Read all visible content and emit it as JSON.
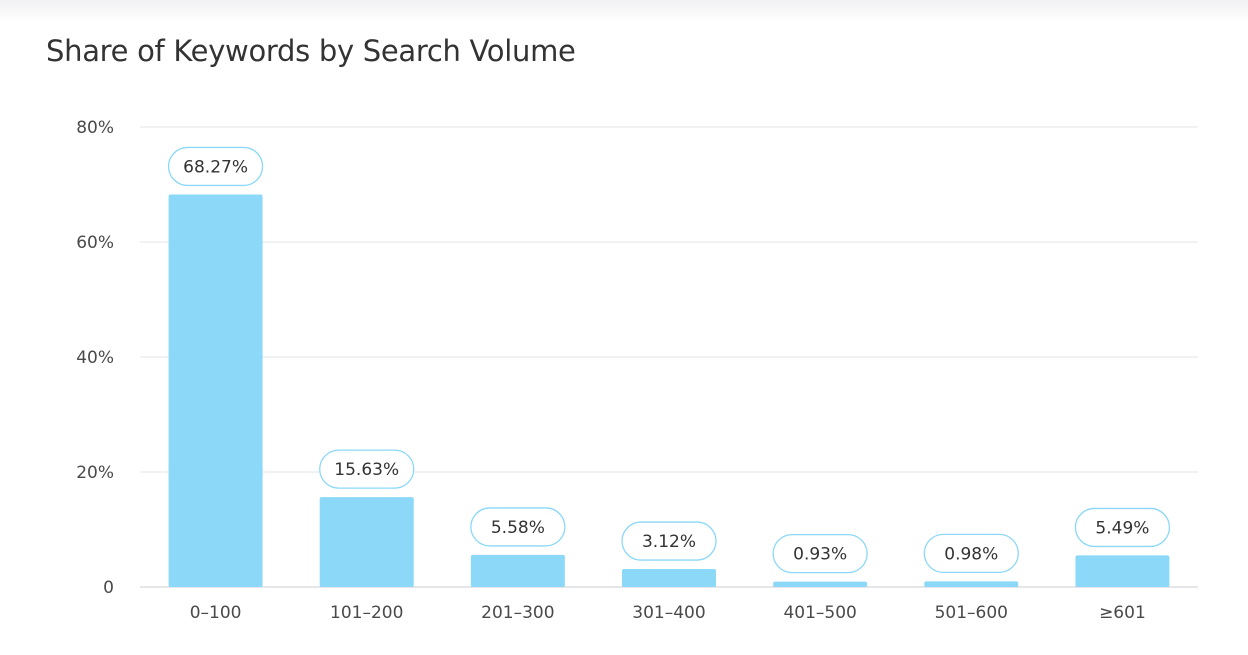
{
  "chart_data": {
    "type": "bar",
    "title": "Share of Keywords by Search Volume",
    "xlabel": "",
    "ylabel": "",
    "categories": [
      "0–100",
      "101–200",
      "201–300",
      "301–400",
      "401–500",
      "501–600",
      "≥601"
    ],
    "values": [
      68.27,
      15.63,
      5.58,
      3.12,
      0.93,
      0.98,
      5.49
    ],
    "data_labels": [
      "68.27%",
      "15.63%",
      "5.58%",
      "3.12%",
      "0.93%",
      "0.98%",
      "5.49%"
    ],
    "y_ticks": [
      {
        "value": 0,
        "label": "0"
      },
      {
        "value": 20,
        "label": "20%"
      },
      {
        "value": 40,
        "label": "40%"
      },
      {
        "value": 60,
        "label": "60%"
      },
      {
        "value": 80,
        "label": "80%"
      }
    ],
    "ylim": [
      0,
      80
    ],
    "grid": true,
    "legend": "none",
    "colors": {
      "bar": "#8bd8f8",
      "label_border": "#8bd8f8",
      "gridline": "#e3e5ea",
      "axis_line": "#c9ccd3",
      "title": "#333333",
      "tick": "#4a4a4a"
    }
  }
}
